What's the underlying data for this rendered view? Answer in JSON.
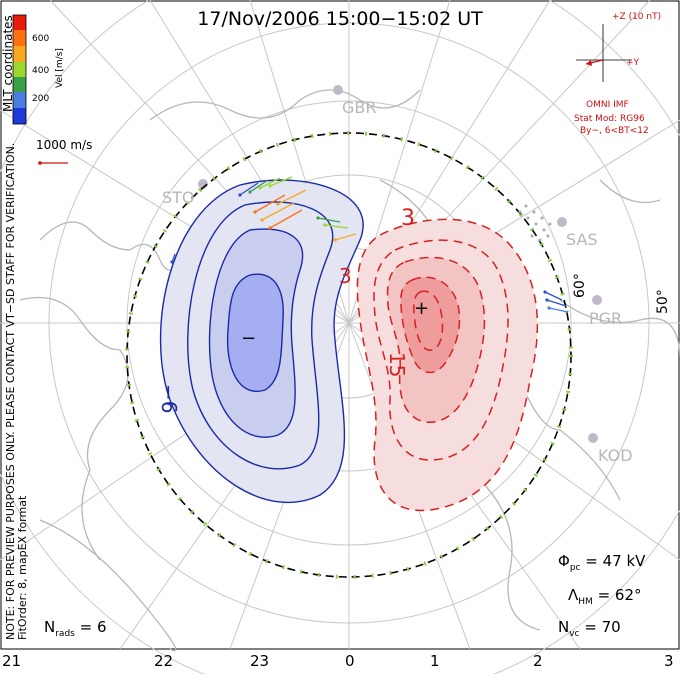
{
  "title": "17/Nov/2006  15:00−15:02 UT",
  "colorbar": {
    "label": "Vel [m/s]",
    "ticks": [
      "600",
      "400",
      "200"
    ],
    "colors": [
      "#e81a0a",
      "#ff7010",
      "#f7a81e",
      "#9ad830",
      "#3aa048",
      "#4a7ee0",
      "#1e3ad8"
    ]
  },
  "coord_label": "MLT coordinates",
  "scale_vector": "1000 m/s",
  "preview_note": "NOTE: FOR PREVIEW PURPOSES ONLY. PLEASE CONTACT VT−SD STAFF FOR VERIFICATION.",
  "fit_note": "FitOrder: 8, mapEX format",
  "imf": {
    "z_label": "+Z (10 nT)",
    "y_label": "+Y",
    "source": "OMNI IMF",
    "model_line1": "Stat Mod: RG96",
    "model_line2": "By−, 6<BT<12"
  },
  "stations": [
    "GBR",
    "STO",
    "SAS",
    "PGR",
    "KOD"
  ],
  "lat_labels": [
    "60°",
    "50°"
  ],
  "contour_labels": {
    "neg": "−6",
    "pos_small": "3",
    "pos_small2": "3",
    "pos_big": "15",
    "min_mark": "−",
    "max_mark": "+"
  },
  "stats": {
    "phi_symbol": "Φ",
    "phi_sub": "pc",
    "phi_value": "= 47 kV",
    "lambda_symbol": "Λ",
    "lambda_sub": "HM",
    "lambda_value": "= 62°",
    "nvc_symbol": "N",
    "nvc_sub": "vc",
    "nvc_value": "= 70",
    "nrads_symbol": "N",
    "nrads_sub": "rads",
    "nrads_value": "= 6"
  },
  "mlt_ticks": [
    "21",
    "22",
    "23",
    "0",
    "1",
    "2",
    "3"
  ],
  "styles": {
    "neg_line": "#1a2aa8",
    "neg_fill_outer": "#e3e5f3",
    "neg_fill_mid": "#c9cdee",
    "neg_fill_inner": "#a5aef0",
    "pos_line": "#d82020",
    "pos_fill_outer": "#f7dede",
    "pos_fill_mid": "#f2c4c4",
    "pos_fill_inner": "#ee9c9c",
    "grid": "#c8c8c8",
    "land": "#b7b7b7",
    "boundary_dot": "#8ad04a"
  }
}
